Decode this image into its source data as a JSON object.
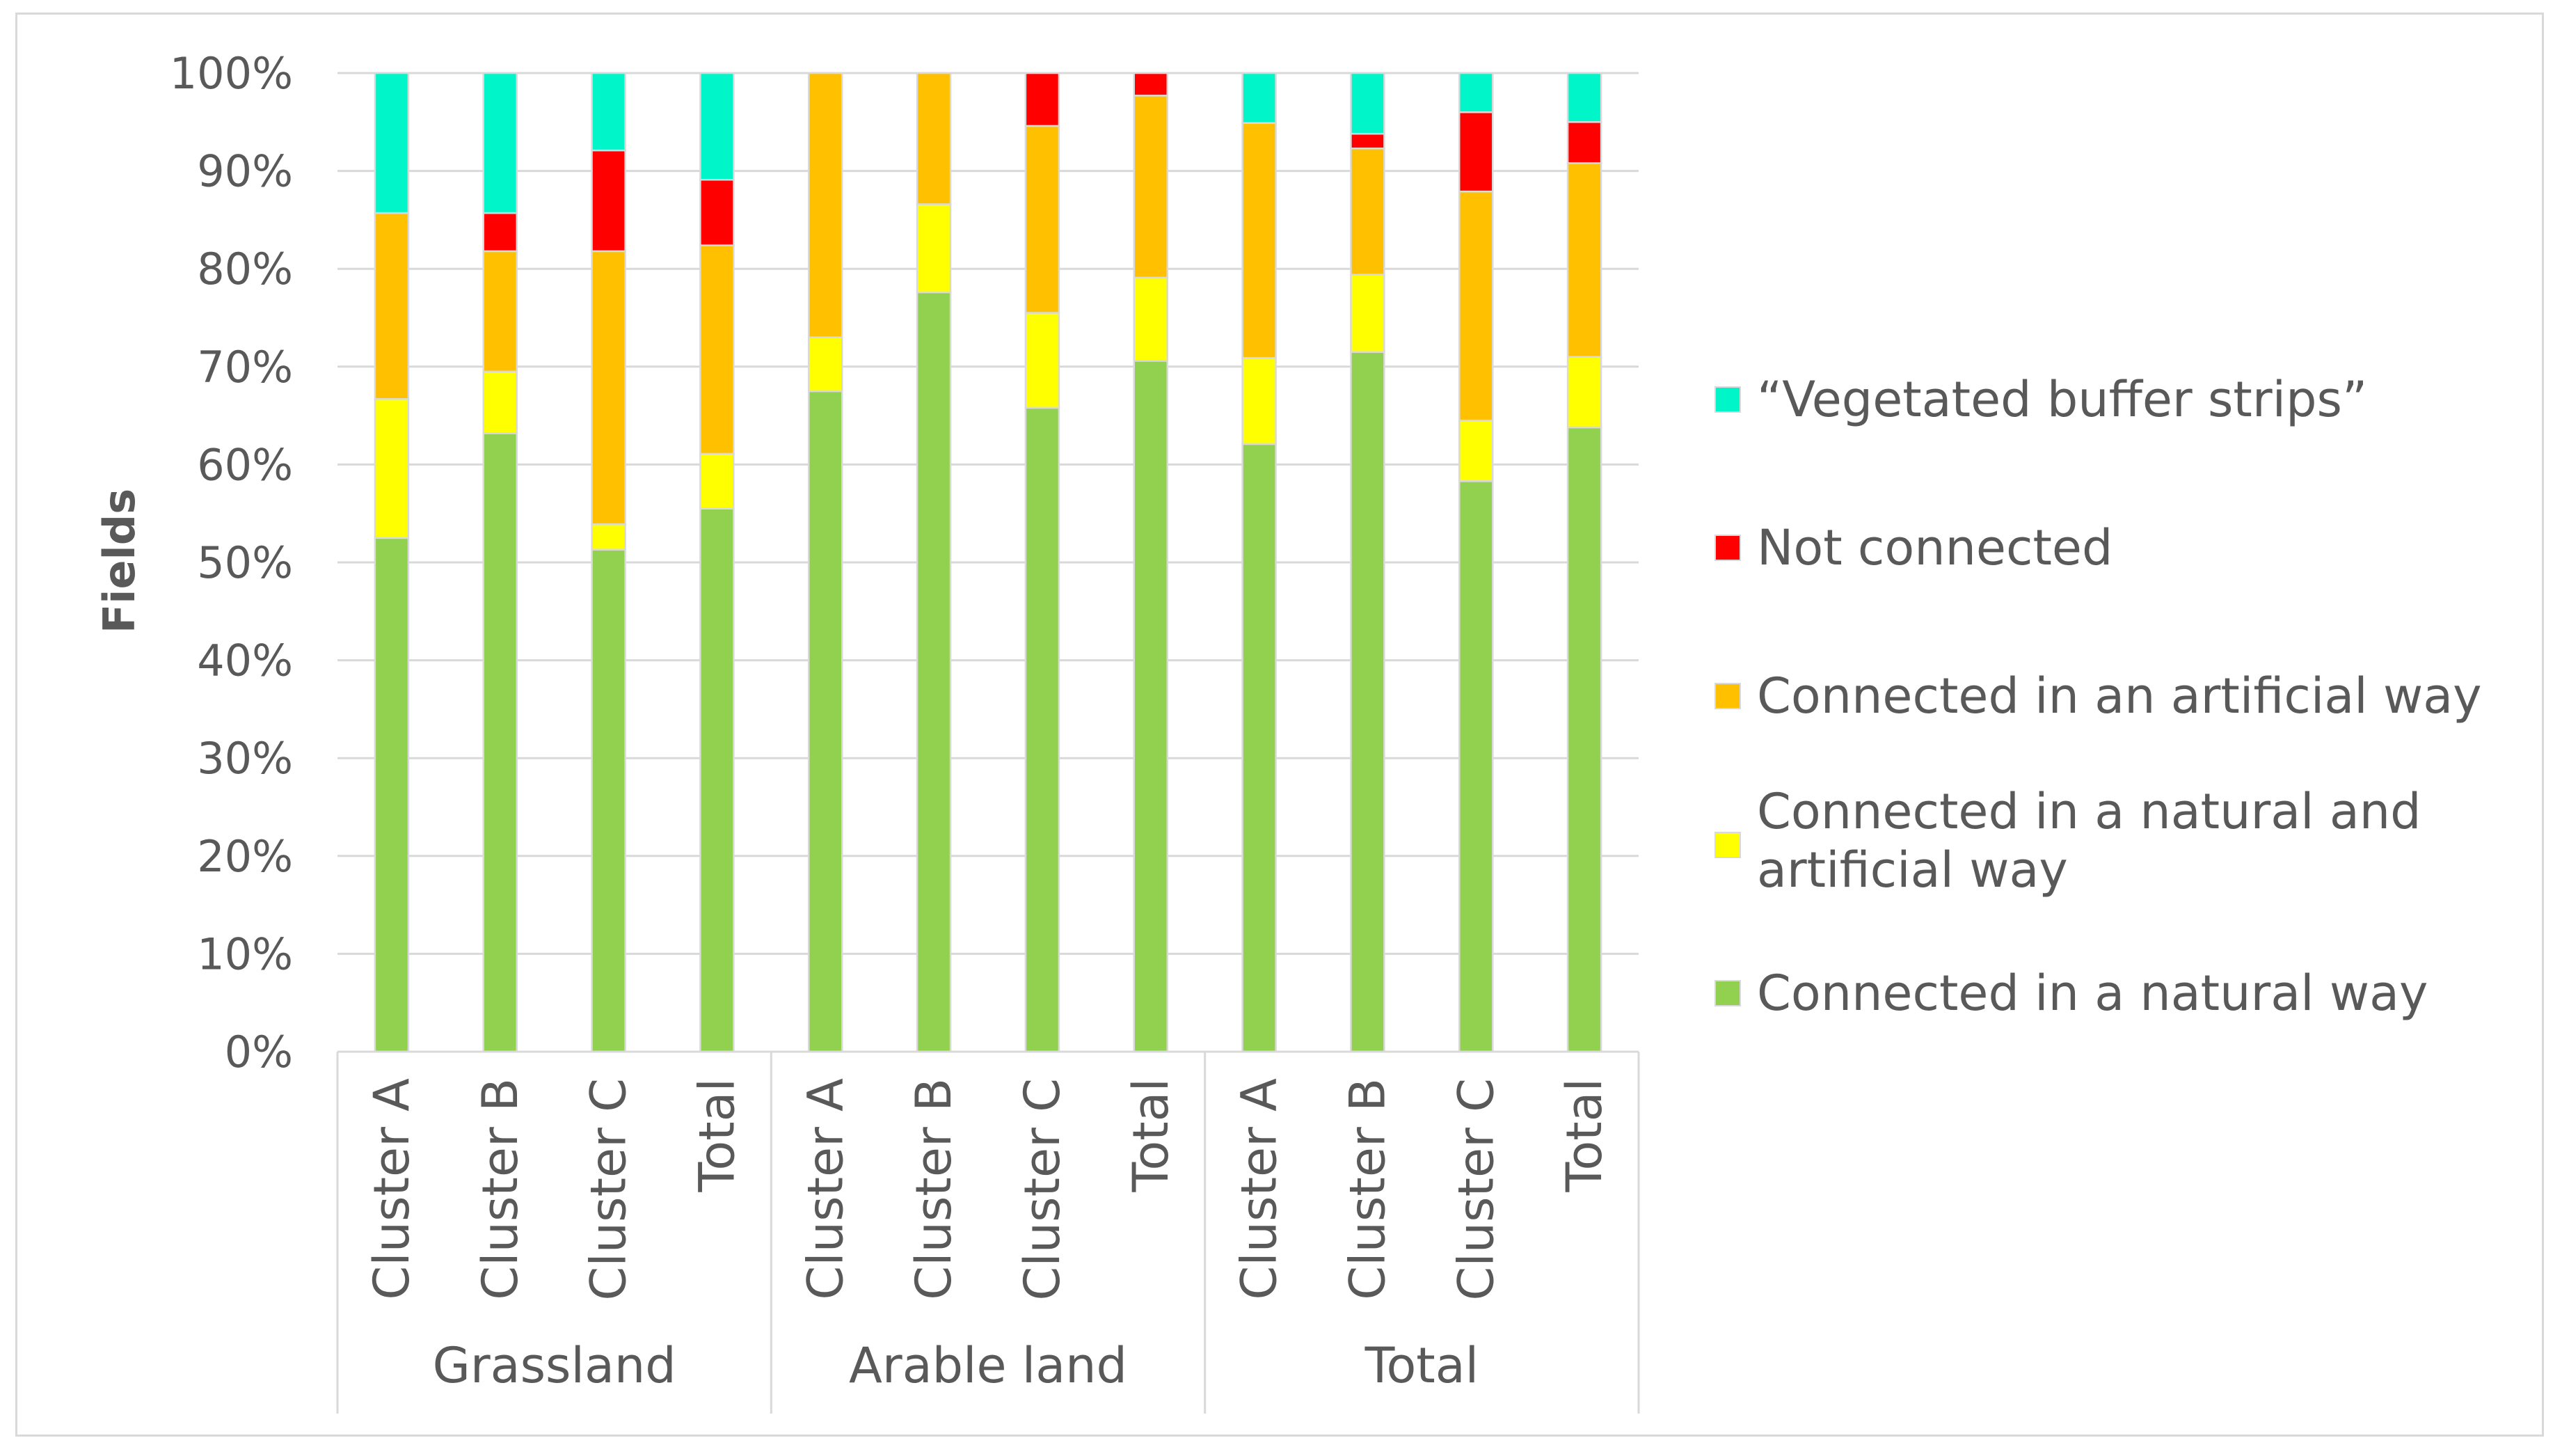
{
  "chart_data": {
    "type": "bar",
    "stacked": true,
    "percent": true,
    "title": "",
    "xlabel": "",
    "ylabel": "Fields",
    "ylim": [
      0,
      100
    ],
    "yticks": [
      "0%",
      "10%",
      "20%",
      "30%",
      "40%",
      "50%",
      "60%",
      "70%",
      "80%",
      "90%",
      "100%"
    ],
    "groups": [
      {
        "label": "Grassland",
        "categories": [
          "Cluster A",
          "Cluster B",
          "Cluster C",
          "Total"
        ]
      },
      {
        "label": "Arable land",
        "categories": [
          "Cluster A",
          "Cluster B",
          "Cluster C",
          "Total"
        ]
      },
      {
        "label": "Total",
        "categories": [
          "Cluster A",
          "Cluster B",
          "Cluster C",
          "Total"
        ]
      }
    ],
    "series": [
      {
        "name": "Connected in a natural way",
        "color": "#92D050",
        "values": [
          52.5,
          63.2,
          51.3,
          55.5,
          67.5,
          77.6,
          65.8,
          70.6,
          62.1,
          71.5,
          58.3,
          63.8
        ]
      },
      {
        "name": "Connected in a natural and artificial way",
        "color": "#FFFF00",
        "values": [
          14.2,
          6.3,
          2.6,
          5.6,
          5.5,
          9.0,
          9.7,
          8.5,
          8.8,
          7.9,
          6.2,
          7.2
        ]
      },
      {
        "name": "Connected in an artificial way",
        "color": "#FFC000",
        "values": [
          19.0,
          12.3,
          27.9,
          21.3,
          27.0,
          13.4,
          19.1,
          18.6,
          24.0,
          12.9,
          23.4,
          19.8
        ]
      },
      {
        "name": "Not connected",
        "color": "#FF0000",
        "values": [
          0,
          3.9,
          10.3,
          6.7,
          0,
          0,
          5.4,
          2.3,
          0,
          1.5,
          8.1,
          4.2
        ]
      },
      {
        "name": "“Vegetated buffer strips”",
        "color": "#00F5C8",
        "values": [
          14.3,
          14.3,
          7.9,
          10.9,
          0,
          0,
          0,
          0,
          5.1,
          6.2,
          4.0,
          5.0
        ]
      }
    ],
    "legend": {
      "position": "right",
      "order": [
        "“Vegetated buffer strips”",
        "Not connected",
        "Connected in an artificial way",
        "Connected in a natural and artificial way",
        "Connected in a natural way"
      ]
    }
  }
}
